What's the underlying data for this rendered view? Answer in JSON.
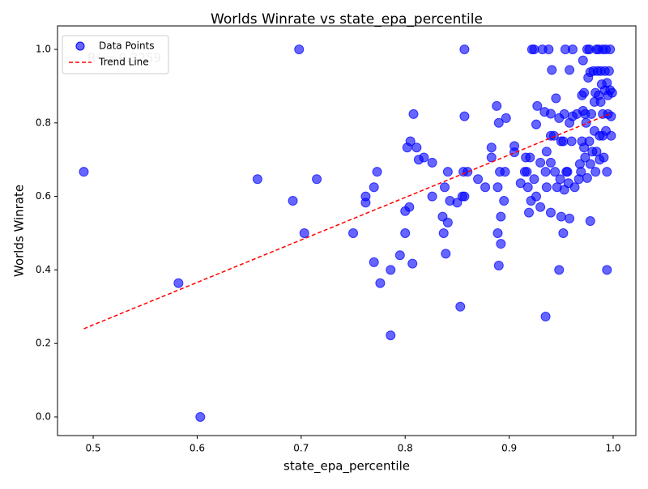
{
  "chart_data": {
    "type": "scatter",
    "title": "Worlds Winrate vs state_epa_percentile",
    "xlabel": "state_epa_percentile",
    "ylabel": "Worlds Winrate",
    "annotation": "R² = 0.3259",
    "series": [
      {
        "name": "Data Points",
        "color": "#0000ff",
        "x": [
          0.491,
          0.582,
          0.603,
          0.658,
          0.692,
          0.698,
          0.703,
          0.715,
          0.75,
          0.762,
          0.762,
          0.77,
          0.77,
          0.773,
          0.776,
          0.786,
          0.786,
          0.795,
          0.8,
          0.8,
          0.802,
          0.804,
          0.805,
          0.807,
          0.808,
          0.811,
          0.813,
          0.818,
          0.826,
          0.826,
          0.836,
          0.837,
          0.838,
          0.839,
          0.841,
          0.841,
          0.843,
          0.85,
          0.853,
          0.855,
          0.856,
          0.857,
          0.857,
          0.857,
          0.86,
          0.87,
          0.877,
          0.883,
          0.883,
          0.888,
          0.889,
          0.889,
          0.89,
          0.89,
          0.891,
          0.892,
          0.892,
          0.895,
          0.896,
          0.897,
          0.905,
          0.905,
          0.911,
          0.915,
          0.916,
          0.917,
          0.918,
          0.919,
          0.92,
          0.921,
          0.922,
          0.924,
          0.924,
          0.926,
          0.926,
          0.927,
          0.93,
          0.93,
          0.932,
          0.934,
          0.935,
          0.935,
          0.936,
          0.936,
          0.938,
          0.94,
          0.94,
          0.941,
          0.94,
          0.94,
          0.943,
          0.944,
          0.945,
          0.946,
          0.948,
          0.948,
          0.949,
          0.95,
          0.95,
          0.952,
          0.952,
          0.953,
          0.953,
          0.954,
          0.955,
          0.956,
          0.957,
          0.958,
          0.958,
          0.958,
          0.96,
          0.961,
          0.961,
          0.963,
          0.965,
          0.967,
          0.968,
          0.969,
          0.97,
          0.97,
          0.971,
          0.971,
          0.972,
          0.972,
          0.973,
          0.973,
          0.974,
          0.975,
          0.975,
          0.976,
          0.977,
          0.977,
          0.978,
          0.978,
          0.978,
          0.979,
          0.98,
          0.981,
          0.982,
          0.982,
          0.983,
          0.983,
          0.984,
          0.984,
          0.985,
          0.986,
          0.986,
          0.987,
          0.987,
          0.988,
          0.988,
          0.989,
          0.99,
          0.99,
          0.99,
          0.991,
          0.992,
          0.992,
          0.993,
          0.993,
          0.994,
          0.994,
          0.994,
          0.995,
          0.995,
          0.996,
          0.997,
          0.997,
          0.998,
          0.998,
          0.999
        ],
        "values": [
          0.667,
          0.364,
          0.0,
          0.647,
          0.588,
          1.0,
          0.5,
          0.647,
          0.5,
          0.6,
          0.583,
          0.625,
          0.421,
          0.667,
          0.364,
          0.4,
          0.222,
          0.44,
          0.56,
          0.5,
          0.733,
          0.571,
          0.75,
          0.417,
          0.824,
          0.733,
          0.7,
          0.706,
          0.692,
          0.6,
          0.545,
          0.5,
          0.625,
          0.444,
          0.667,
          0.529,
          0.588,
          0.583,
          0.3,
          0.6,
          0.667,
          0.6,
          1.0,
          0.818,
          0.667,
          0.647,
          0.625,
          0.706,
          0.733,
          0.846,
          0.625,
          0.5,
          0.412,
          0.8,
          0.667,
          0.545,
          0.471,
          0.588,
          0.667,
          0.813,
          0.737,
          0.72,
          0.636,
          0.667,
          0.706,
          0.667,
          0.625,
          0.556,
          0.706,
          0.588,
          1.0,
          1.0,
          0.647,
          0.6,
          0.796,
          0.846,
          0.692,
          0.571,
          1.0,
          0.83,
          0.667,
          0.273,
          0.722,
          0.625,
          1.0,
          0.765,
          0.825,
          0.944,
          0.692,
          0.556,
          0.765,
          0.667,
          0.867,
          0.625,
          0.813,
          0.4,
          0.647,
          0.75,
          0.545,
          0.75,
          0.5,
          0.824,
          0.618,
          1.0,
          0.667,
          0.667,
          0.636,
          0.8,
          0.54,
          0.944,
          0.75,
          0.818,
          1.0,
          0.625,
          0.824,
          0.647,
          0.688,
          0.667,
          0.875,
          0.75,
          0.97,
          0.833,
          0.882,
          0.733,
          0.824,
          0.706,
          0.8,
          1.0,
          0.65,
          0.923,
          0.75,
          1.0,
          0.688,
          0.533,
          0.938,
          0.824,
          0.722,
          0.941,
          0.857,
          0.778,
          0.882,
          0.667,
          1.0,
          0.722,
          0.941,
          1.0,
          0.875,
          0.765,
          0.7,
          0.857,
          0.941,
          0.905,
          0.824,
          1.0,
          0.765,
          0.706,
          0.889,
          0.941,
          0.778,
          1.0,
          0.667,
          0.909,
          0.4,
          0.875,
          0.824,
          0.941,
          1.0,
          0.889,
          0.765,
          0.818,
          0.882
        ]
      }
    ],
    "trend": {
      "name": "Trend Line",
      "color": "#ff0000",
      "x": [
        0.491,
        0.997
      ],
      "values": [
        0.24,
        0.825
      ]
    },
    "xlim": [
      0.4657,
      1.0218
    ],
    "ylim": [
      -0.0507,
      1.0639
    ],
    "xticks": [
      0.5,
      0.6,
      0.7,
      0.8,
      0.9,
      {
        "value": 1,
        "label": "1.0"
      }
    ],
    "yticks": [
      {
        "value": 0,
        "label": "0.0"
      },
      0.2,
      0.4,
      0.6,
      0.8,
      {
        "value": 1,
        "label": "1.0"
      }
    ],
    "legend": "upper left",
    "grid": false
  }
}
